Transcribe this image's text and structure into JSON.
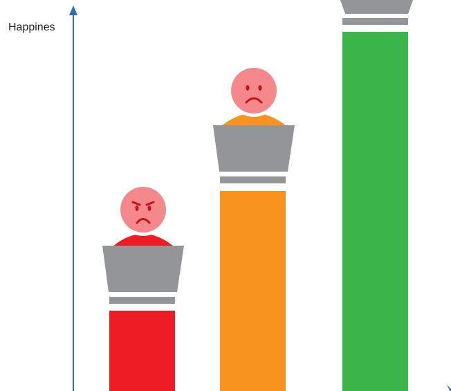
{
  "axis_label": "Happines"
}
